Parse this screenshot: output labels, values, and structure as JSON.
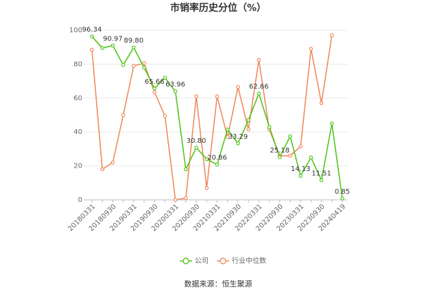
{
  "chart_data": {
    "type": "line",
    "title": "市销率历史分位（%）",
    "categories": [
      "20180331",
      null,
      "20180930",
      null,
      "20190331",
      null,
      "20190930",
      null,
      "20200331",
      null,
      "20200930",
      null,
      "20210331",
      null,
      "20210930",
      null,
      "20220331",
      null,
      "20220930",
      null,
      "20230331",
      null,
      "20230930",
      null,
      "20240419"
    ],
    "series": [
      {
        "name": "公司",
        "color": "#52c41a",
        "values": [
          96.34,
          89.5,
          90.97,
          79.5,
          89.8,
          78,
          65.66,
          72,
          63.96,
          18,
          30.8,
          24,
          20.86,
          41.5,
          33.29,
          47,
          62.66,
          43,
          25.18,
          37.5,
          14.13,
          25,
          11.51,
          45,
          0.85
        ],
        "value_labels": [
          "96.34",
          null,
          "90.97",
          null,
          "89.80",
          null,
          "65.66",
          null,
          "63.96",
          null,
          "30.80",
          null,
          "20.86",
          null,
          "33.29",
          null,
          "62.66",
          null,
          "25.18",
          null,
          "14.13",
          null,
          "11.51",
          null,
          "0.85"
        ]
      },
      {
        "name": "行业中位数",
        "color": "#f08a5d",
        "values": [
          88.5,
          18,
          22,
          50,
          79,
          80.5,
          63.5,
          49.5,
          0,
          1,
          61,
          7,
          61,
          37,
          66.5,
          41.5,
          82.5,
          41.5,
          26,
          26,
          31.5,
          89,
          57,
          97,
          null
        ]
      }
    ],
    "ylim": [
      0,
      100
    ],
    "yticks": [
      0,
      20,
      40,
      60,
      80,
      100
    ],
    "grid": true,
    "source": "数据来源：恒生聚源"
  }
}
